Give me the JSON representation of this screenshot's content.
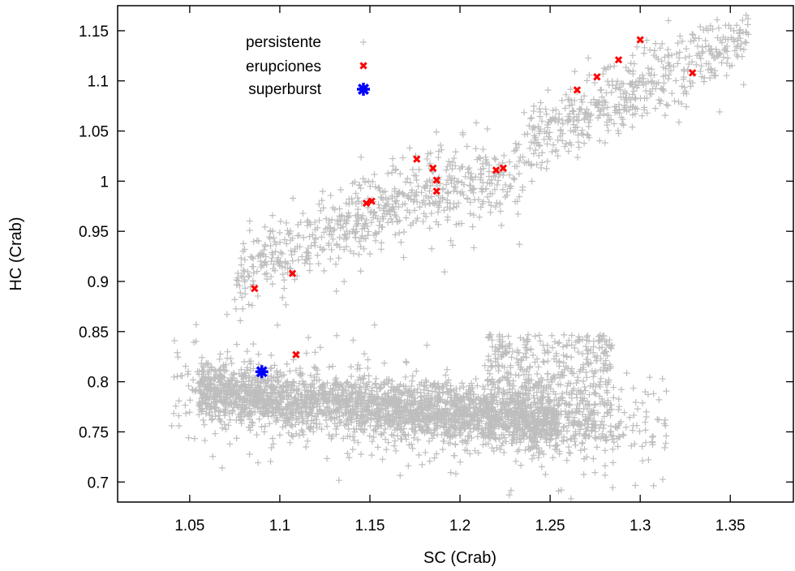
{
  "chart_data": {
    "type": "scatter",
    "xlabel": "SC (Crab)",
    "ylabel": "HC (Crab)",
    "xlim": [
      1.01,
      1.385
    ],
    "ylim": [
      0.68,
      1.175
    ],
    "xticks": [
      1.05,
      1.1,
      1.15,
      1.2,
      1.25,
      1.3,
      1.35
    ],
    "yticks": [
      0.7,
      0.75,
      0.8,
      0.85,
      0.9,
      0.95,
      1.0,
      1.05,
      1.1,
      1.15
    ],
    "xtick_labels": [
      "1.05",
      "1.1",
      "1.15",
      "1.2",
      "1.25",
      "1.3",
      "1.35"
    ],
    "ytick_labels": [
      "0.7",
      "0.75",
      "0.8",
      "0.85",
      "0.9",
      "0.95",
      "1",
      "1.05",
      "1.1",
      "1.15"
    ],
    "legend_position": "top-left",
    "grid": false,
    "series": [
      {
        "name": "persistente",
        "marker": "plus",
        "color": "#bebebe",
        "description_regions": [
          {
            "x_range": [
              1.04,
              1.31
            ],
            "y_center": 0.77,
            "shape": "lower band"
          },
          {
            "x_range": [
              1.06,
              1.36
            ],
            "y_center": 1.0,
            "shape": "upper rising band"
          }
        ],
        "points": []
      },
      {
        "name": "erupciones",
        "marker": "x",
        "color": "#ff0000",
        "points": [
          [
            1.086,
            0.893
          ],
          [
            1.107,
            0.908
          ],
          [
            1.109,
            0.827
          ],
          [
            1.148,
            0.978
          ],
          [
            1.151,
            0.98
          ],
          [
            1.176,
            1.022
          ],
          [
            1.185,
            1.013
          ],
          [
            1.187,
            1.001
          ],
          [
            1.187,
            0.99
          ],
          [
            1.22,
            1.011
          ],
          [
            1.224,
            1.013
          ],
          [
            1.265,
            1.091
          ],
          [
            1.276,
            1.104
          ],
          [
            1.288,
            1.121
          ],
          [
            1.3,
            1.141
          ],
          [
            1.329,
            1.108
          ]
        ]
      },
      {
        "name": "superburst",
        "marker": "star",
        "color": "#0000ff",
        "points": [
          [
            1.09,
            0.81
          ]
        ]
      }
    ]
  }
}
